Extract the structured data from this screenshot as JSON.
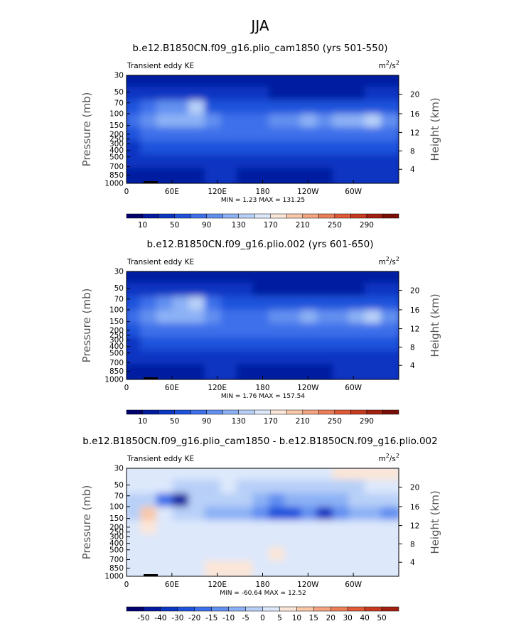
{
  "figure": {
    "title": "JJA"
  },
  "chart_data": [
    {
      "type": "heatmap",
      "title": "b.e12.B1850CN.f09_g16.plio_cam1850 (yrs 501-550)",
      "left_label": "Transient eddy KE",
      "units_base": "m",
      "units_exp1": "2",
      "units_sep": "/s",
      "units_exp2": "2",
      "ylabel": "Pressure (mb)",
      "y2label": "Height (km)",
      "xticks": [
        "0",
        "60E",
        "120E",
        "180",
        "120W",
        "60W"
      ],
      "yticks": [
        "30",
        "50",
        "70",
        "100",
        "150",
        "200",
        "250",
        "300",
        "400",
        "500",
        "700",
        "850",
        "1000"
      ],
      "y2ticks": [
        "20",
        "16",
        "12",
        "8",
        "4"
      ],
      "min_label": "MIN =",
      "min_value": "1.23",
      "max_label": "MAX =",
      "max_value": "131.25",
      "colorbar": {
        "labels": [
          "10",
          "50",
          "90",
          "130",
          "170",
          "210",
          "250",
          "290"
        ],
        "colors": [
          "#00006e",
          "#021aa0",
          "#0a36c2",
          "#1f52dc",
          "#3d70ea",
          "#6290f0",
          "#8cb1f5",
          "#b8d0f8",
          "#dde8fb",
          "#fbe6d7",
          "#f8c8a8",
          "#f4a480",
          "#ec7e58",
          "#e05a38",
          "#c63a20",
          "#a22010",
          "#7a0e06"
        ],
        "field_levels": [
          [
            1,
            1,
            1,
            1,
            1,
            1,
            1,
            1,
            1,
            1,
            1,
            1,
            1,
            1,
            1,
            1,
            1
          ],
          [
            2,
            2,
            2,
            2,
            2,
            2,
            2,
            2,
            2,
            1,
            1,
            1,
            1,
            1,
            1,
            2,
            2
          ],
          [
            3,
            4,
            5,
            5,
            7,
            3,
            3,
            3,
            3,
            3,
            3,
            3,
            3,
            3,
            3,
            3,
            3
          ],
          [
            4,
            5,
            6,
            6,
            6,
            5,
            4,
            4,
            4,
            5,
            5,
            6,
            5,
            6,
            6,
            7,
            5
          ],
          [
            3,
            4,
            4,
            4,
            4,
            4,
            4,
            4,
            4,
            4,
            4,
            4,
            4,
            4,
            4,
            4,
            4
          ],
          [
            2,
            3,
            3,
            3,
            3,
            3,
            3,
            3,
            3,
            3,
            3,
            3,
            3,
            3,
            3,
            3,
            3
          ],
          [
            2,
            2,
            2,
            2,
            2,
            2,
            2,
            2,
            2,
            2,
            2,
            2,
            2,
            2,
            2,
            2,
            2
          ],
          [
            1,
            1,
            1,
            1,
            1,
            2,
            2,
            1,
            1,
            1,
            1,
            1,
            1,
            2,
            2,
            2,
            2
          ]
        ]
      }
    },
    {
      "type": "heatmap",
      "title": "b.e12.B1850CN.f09_g16.plio.002 (yrs 601-650)",
      "left_label": "Transient eddy KE",
      "units_base": "m",
      "units_exp1": "2",
      "units_sep": "/s",
      "units_exp2": "2",
      "ylabel": "Pressure (mb)",
      "y2label": "Height (km)",
      "xticks": [
        "0",
        "60E",
        "120E",
        "180",
        "120W",
        "60W"
      ],
      "yticks": [
        "30",
        "50",
        "70",
        "100",
        "150",
        "200",
        "250",
        "300",
        "400",
        "500",
        "700",
        "850",
        "1000"
      ],
      "y2ticks": [
        "20",
        "16",
        "12",
        "8",
        "4"
      ],
      "min_label": "MIN =",
      "min_value": "1.76",
      "max_label": "MAX =",
      "max_value": "157.54",
      "colorbar": {
        "labels": [
          "10",
          "50",
          "90",
          "130",
          "170",
          "210",
          "250",
          "290"
        ],
        "colors": [
          "#00006e",
          "#021aa0",
          "#0a36c2",
          "#1f52dc",
          "#3d70ea",
          "#6290f0",
          "#8cb1f5",
          "#b8d0f8",
          "#dde8fb",
          "#fbe6d7",
          "#f8c8a8",
          "#f4a480",
          "#ec7e58",
          "#e05a38",
          "#c63a20",
          "#a22010",
          "#7a0e06"
        ],
        "field_levels": [
          [
            1,
            1,
            1,
            1,
            1,
            1,
            1,
            1,
            1,
            1,
            1,
            1,
            1,
            1,
            1,
            1,
            1
          ],
          [
            2,
            2,
            2,
            2,
            2,
            2,
            2,
            2,
            1,
            1,
            1,
            1,
            1,
            1,
            1,
            2,
            2
          ],
          [
            3,
            4,
            5,
            6,
            7,
            4,
            3,
            3,
            3,
            3,
            3,
            3,
            3,
            3,
            3,
            3,
            3
          ],
          [
            4,
            5,
            6,
            6,
            6,
            5,
            4,
            4,
            4,
            5,
            5,
            6,
            5,
            5,
            6,
            7,
            5
          ],
          [
            3,
            4,
            4,
            4,
            4,
            4,
            4,
            4,
            4,
            4,
            4,
            4,
            4,
            4,
            4,
            4,
            4
          ],
          [
            2,
            3,
            3,
            3,
            3,
            3,
            3,
            3,
            3,
            3,
            3,
            3,
            3,
            3,
            3,
            3,
            3
          ],
          [
            2,
            2,
            2,
            2,
            2,
            2,
            2,
            2,
            2,
            2,
            2,
            2,
            2,
            2,
            2,
            2,
            2
          ],
          [
            1,
            1,
            1,
            1,
            1,
            2,
            2,
            1,
            1,
            1,
            1,
            1,
            1,
            2,
            2,
            2,
            2
          ]
        ]
      }
    },
    {
      "type": "heatmap",
      "title": "b.e12.B1850CN.f09_g16.plio_cam1850 - b.e12.B1850CN.f09_g16.plio.002",
      "left_label": "Transient eddy KE",
      "units_base": "m",
      "units_exp1": "2",
      "units_sep": "/s",
      "units_exp2": "2",
      "ylabel": "Pressure (mb)",
      "y2label": "Height (km)",
      "xticks": [
        "0",
        "60E",
        "120E",
        "180",
        "120W",
        "60W"
      ],
      "yticks": [
        "30",
        "50",
        "70",
        "100",
        "150",
        "200",
        "250",
        "300",
        "400",
        "500",
        "700",
        "850",
        "1000"
      ],
      "y2ticks": [
        "20",
        "16",
        "12",
        "8",
        "4"
      ],
      "min_label": "MIN =",
      "min_value": "-60.64",
      "max_label": "MAX =",
      "max_value": "12.52",
      "colorbar": {
        "labels": [
          "-50",
          "-40",
          "-30",
          "-20",
          "-15",
          "-10",
          "-5",
          "0",
          "5",
          "10",
          "15",
          "20",
          "30",
          "40",
          "50"
        ],
        "colors": [
          "#00006e",
          "#021aa0",
          "#0a36c2",
          "#1f52dc",
          "#3d70ea",
          "#6290f0",
          "#8cb1f5",
          "#b8d0f8",
          "#dde8fb",
          "#fbe6d7",
          "#f8c8a8",
          "#f4a480",
          "#ec7e58",
          "#e05a38",
          "#c63a20",
          "#a22010"
        ],
        "field_levels": [
          [
            8,
            8,
            8,
            8,
            8,
            8,
            8,
            8,
            8,
            8,
            8,
            8,
            8,
            9,
            9,
            9,
            9
          ],
          [
            8,
            8,
            8,
            7,
            7,
            7,
            8,
            7,
            7,
            7,
            7,
            7,
            7,
            7,
            7,
            8,
            8
          ],
          [
            7,
            7,
            4,
            1,
            7,
            7,
            7,
            7,
            6,
            5,
            6,
            6,
            6,
            6,
            7,
            7,
            7
          ],
          [
            7,
            10,
            8,
            7,
            7,
            6,
            6,
            6,
            5,
            3,
            3,
            5,
            2,
            5,
            6,
            6,
            5
          ],
          [
            8,
            9,
            8,
            8,
            8,
            8,
            8,
            8,
            8,
            8,
            8,
            8,
            8,
            8,
            8,
            8,
            8
          ],
          [
            8,
            8,
            8,
            8,
            8,
            8,
            8,
            8,
            8,
            8,
            8,
            8,
            8,
            8,
            8,
            8,
            8
          ],
          [
            8,
            8,
            8,
            8,
            8,
            8,
            8,
            8,
            8,
            9,
            8,
            8,
            8,
            8,
            8,
            8,
            8
          ],
          [
            8,
            8,
            8,
            8,
            8,
            9,
            9,
            9,
            8,
            8,
            8,
            8,
            8,
            8,
            8,
            8,
            8
          ]
        ]
      }
    }
  ]
}
